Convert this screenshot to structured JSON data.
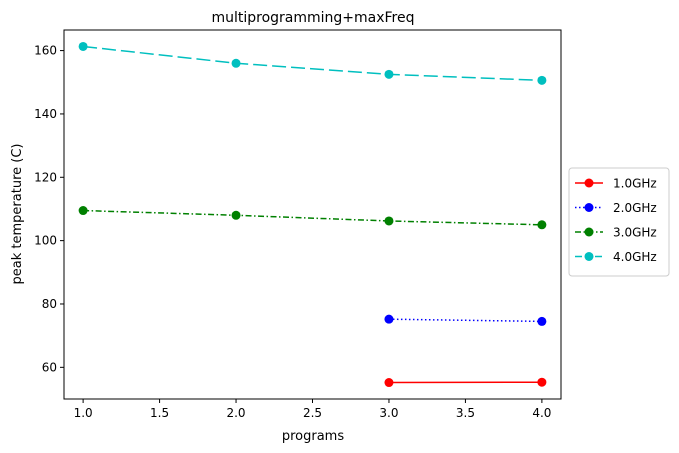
{
  "chart_data": {
    "type": "line",
    "title": "multiprogramming+maxFreq",
    "xlabel": "programs",
    "ylabel": "peak temperature (C)",
    "xlim": [
      0.875,
      4.125
    ],
    "ylim": [
      50,
      166.5
    ],
    "xticks": [
      1.0,
      1.5,
      2.0,
      2.5,
      3.0,
      3.5,
      4.0
    ],
    "xtick_labels": [
      "1.0",
      "1.5",
      "2.0",
      "2.5",
      "3.0",
      "3.5",
      "4.0"
    ],
    "yticks": [
      60,
      80,
      100,
      120,
      140,
      160
    ],
    "ytick_labels": [
      "60",
      "80",
      "100",
      "120",
      "140",
      "160"
    ],
    "grid": false,
    "legend_position": "outside-right",
    "series": [
      {
        "name": "1.0GHz",
        "color": "#ff0000",
        "line_style": "solid",
        "x": [
          3,
          4
        ],
        "y": [
          55.2,
          55.3
        ]
      },
      {
        "name": "2.0GHz",
        "color": "#0000ff",
        "line_style": "dotted",
        "x": [
          3,
          4
        ],
        "y": [
          75.2,
          74.5
        ]
      },
      {
        "name": "3.0GHz",
        "color": "#008000",
        "line_style": "dashdot",
        "x": [
          1,
          2,
          3,
          4
        ],
        "y": [
          109.5,
          108.0,
          106.2,
          105.0
        ]
      },
      {
        "name": "4.0GHz",
        "color": "#00bfbf",
        "line_style": "dashed",
        "x": [
          1,
          2,
          3,
          4
        ],
        "y": [
          161.3,
          156.0,
          152.5,
          150.6
        ]
      }
    ]
  }
}
